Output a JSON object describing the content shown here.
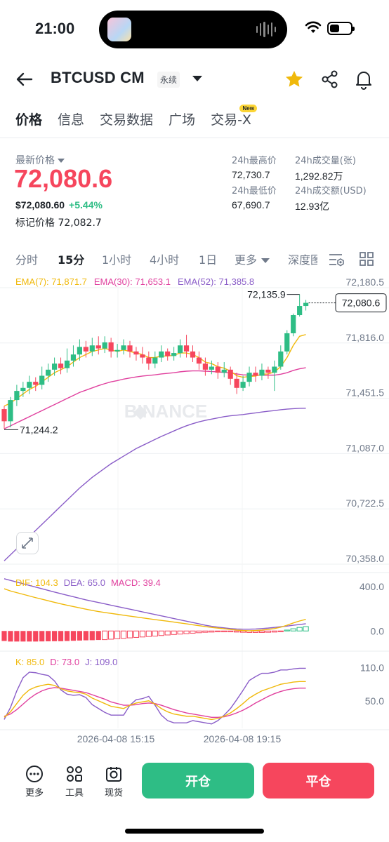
{
  "status_bar": {
    "time": "21:00",
    "battery_level": 0.45
  },
  "header": {
    "title": "BTCUSD CM",
    "tag": "永续",
    "icons": [
      "back-arrow-icon",
      "star-icon",
      "share-icon",
      "bell-icon"
    ],
    "star_color": "#f0b90b"
  },
  "tabs": [
    {
      "label": "价格",
      "active": true
    },
    {
      "label": "信息"
    },
    {
      "label": "交易数据"
    },
    {
      "label": "广场"
    },
    {
      "label": "交易-X",
      "badge": "New"
    }
  ],
  "price": {
    "label": "最新价格",
    "last": "72,080.6",
    "usd": "$72,080.60",
    "change": "+5.44%",
    "mark_label": "标记价格",
    "mark_value": "72,082.7",
    "up_color": "#2ebd85",
    "down_color": "#f6465d"
  },
  "stats": {
    "high_label": "24h最高价",
    "high": "72,730.7",
    "low_label": "24h最低价",
    "low": "67,690.7",
    "vol_label": "24h成交量(张)",
    "vol": "1,292.82万",
    "amount_label": "24h成交额(USD)",
    "amount": "12.93亿"
  },
  "intervals": {
    "items": [
      "分时",
      "15分",
      "1小时",
      "4小时",
      "1日",
      "更多",
      "深度图"
    ],
    "active": "15分"
  },
  "chart_data": {
    "type": "candlestick",
    "ema_legend": {
      "ema7": "EMA(7): 71,871.7",
      "ema30": "EMA(30): 71,653.1",
      "ema52": "EMA(52): 71,385.8"
    },
    "y_ticks": [
      "72,180.5",
      "71,816.0",
      "71,451.5",
      "71,087.0",
      "70,722.5",
      "70,358.0"
    ],
    "ylim": [
      70358.0,
      72180.5
    ],
    "x_ticks": [
      "2026-04-08 15:15",
      "2026-04-08 19:15"
    ],
    "high_label": "72,135.9",
    "low_label": "71,244.2",
    "current_price_label": "72,080.6",
    "candles": [
      [
        71380,
        71300,
        71250,
        71400
      ],
      [
        71300,
        71440,
        71260,
        71460
      ],
      [
        71440,
        71500,
        71400,
        71540
      ],
      [
        71500,
        71520,
        71460,
        71560
      ],
      [
        71520,
        71560,
        71480,
        71600
      ],
      [
        71560,
        71540,
        71500,
        71590
      ],
      [
        71540,
        71600,
        71510,
        71660
      ],
      [
        71600,
        71640,
        71560,
        71680
      ],
      [
        71640,
        71680,
        71600,
        71720
      ],
      [
        71680,
        71650,
        71610,
        71720
      ],
      [
        71650,
        71700,
        71620,
        71780
      ],
      [
        71700,
        71740,
        71660,
        71800
      ],
      [
        71740,
        71790,
        71700,
        71840
      ],
      [
        71790,
        71760,
        71720,
        71830
      ],
      [
        71760,
        71800,
        71730,
        71850
      ],
      [
        71800,
        71780,
        71740,
        71860
      ],
      [
        71780,
        71820,
        71750,
        71860
      ],
      [
        71820,
        71760,
        71720,
        71850
      ],
      [
        71760,
        71770,
        71720,
        71810
      ],
      [
        71770,
        71800,
        71740,
        71840
      ],
      [
        71800,
        71760,
        71720,
        71830
      ],
      [
        71760,
        71740,
        71700,
        71790
      ],
      [
        71740,
        71720,
        71680,
        71790
      ],
      [
        71720,
        71680,
        71640,
        71760
      ],
      [
        71680,
        71720,
        71650,
        71760
      ],
      [
        71720,
        71760,
        71690,
        71800
      ],
      [
        71760,
        71730,
        71700,
        71780
      ],
      [
        71730,
        71750,
        71700,
        71790
      ],
      [
        71750,
        71800,
        71720,
        71840
      ],
      [
        71800,
        71760,
        71720,
        71870
      ],
      [
        71760,
        71720,
        71690,
        71800
      ],
      [
        71720,
        71680,
        71640,
        71760
      ],
      [
        71680,
        71640,
        71600,
        71720
      ],
      [
        71640,
        71660,
        71610,
        71700
      ],
      [
        71660,
        71620,
        71580,
        71690
      ],
      [
        71620,
        71640,
        71590,
        71690
      ],
      [
        71640,
        71580,
        71540,
        71660
      ],
      [
        71580,
        71520,
        71480,
        71620
      ],
      [
        71520,
        71560,
        71500,
        71600
      ],
      [
        71560,
        71620,
        71530,
        71660
      ],
      [
        71620,
        71600,
        71560,
        71660
      ],
      [
        71600,
        71640,
        71570,
        71680
      ],
      [
        71640,
        71620,
        71580,
        71660
      ],
      [
        71620,
        71660,
        71500,
        71700
      ],
      [
        71660,
        71760,
        71640,
        71800
      ],
      [
        71760,
        71880,
        71740,
        71900
      ],
      [
        71880,
        72000,
        71860,
        72010
      ],
      [
        72000,
        72060,
        71990,
        72135.9
      ],
      [
        72060,
        72080.6,
        72030,
        72100
      ]
    ],
    "ema7": [
      71400,
      71420,
      71450,
      71480,
      71510,
      71530,
      71560,
      71590,
      71620,
      71640,
      71660,
      71690,
      71720,
      71740,
      71760,
      71770,
      71780,
      71770,
      71760,
      71770,
      71760,
      71750,
      71740,
      71720,
      71720,
      71730,
      71730,
      71735,
      71750,
      71750,
      71740,
      71720,
      71690,
      71680,
      71660,
      71650,
      71630,
      71600,
      71590,
      71595,
      71598,
      71610,
      71612,
      71625,
      71660,
      71720,
      71800,
      71860,
      71871.7
    ],
    "ema30": [
      71250,
      71270,
      71290,
      71310,
      71330,
      71350,
      71370,
      71390,
      71410,
      71430,
      71450,
      71470,
      71490,
      71505,
      71520,
      71535,
      71548,
      71560,
      71568,
      71578,
      71585,
      71592,
      71598,
      71602,
      71606,
      71612,
      71616,
      71620,
      71626,
      71630,
      71632,
      71632,
      71630,
      71628,
      71625,
      71622,
      71618,
      71612,
      71606,
      71604,
      71603,
      71603,
      71604,
      71604,
      71610,
      71620,
      71635,
      71646,
      71653.1
    ],
    "ema52": [
      70380,
      70420,
      70460,
      70500,
      70540,
      70580,
      70620,
      70660,
      70700,
      70740,
      70780,
      70820,
      70860,
      70895,
      70930,
      70960,
      70990,
      71020,
      71045,
      71070,
      71095,
      71120,
      71140,
      71160,
      71180,
      71200,
      71218,
      71236,
      71254,
      71270,
      71284,
      71296,
      71306,
      71314,
      71322,
      71330,
      71336,
      71340,
      71344,
      71350,
      71355,
      71361,
      71366,
      71370,
      71376,
      71380,
      71383,
      71385,
      71385.8
    ]
  },
  "macd": {
    "legend": {
      "dif": "DIF: 104.3",
      "dea": "DEA: 65.0",
      "macd": "MACD: 39.4"
    },
    "y_ticks": [
      "400.0",
      "0.0"
    ],
    "ylim": [
      -150,
      450
    ],
    "dif": [
      380,
      360,
      345,
      330,
      315,
      300,
      286,
      272,
      258,
      244,
      232,
      220,
      208,
      196,
      185,
      175,
      166,
      158,
      150,
      142,
      134,
      126,
      118,
      110,
      102,
      95,
      88,
      80,
      72,
      64,
      56,
      48,
      40,
      32,
      26,
      20,
      14,
      8,
      4,
      2,
      4,
      8,
      14,
      22,
      34,
      52,
      72,
      90,
      104.3
    ],
    "dea": [
      470,
      455,
      440,
      425,
      410,
      395,
      380,
      365,
      350,
      336,
      322,
      308,
      294,
      280,
      268,
      256,
      244,
      232,
      220,
      208,
      196,
      184,
      172,
      160,
      148,
      136,
      124,
      112,
      100,
      88,
      76,
      64,
      52,
      42,
      34,
      28,
      22,
      18,
      16,
      16,
      18,
      22,
      26,
      32,
      38,
      44,
      52,
      58,
      65.0
    ],
    "hist": [
      -90,
      -95,
      -95,
      -95,
      -95,
      -95,
      -94,
      -93,
      -92,
      -92,
      -90,
      -88,
      -86,
      -84,
      -83,
      -81,
      -78,
      -74,
      -70,
      -66,
      -62,
      -58,
      -54,
      -50,
      -46,
      -41,
      -36,
      -32,
      -28,
      -24,
      -20,
      -16,
      -12,
      -10,
      -8,
      -8,
      -8,
      -10,
      -12,
      -14,
      -14,
      -14,
      -12,
      -10,
      -4,
      8,
      20,
      32,
      39.4
    ]
  },
  "kdj": {
    "legend": {
      "k": "K: 85.0",
      "d": "D: 73.0",
      "j": "J: 109.0"
    },
    "y_ticks": [
      "110.0",
      "50.0"
    ],
    "ylim": [
      0,
      130
    ],
    "k": [
      20,
      30,
      45,
      60,
      70,
      75,
      78,
      80,
      78,
      72,
      68,
      66,
      65,
      62,
      55,
      50,
      45,
      40,
      38,
      36,
      42,
      46,
      48,
      50,
      44,
      36,
      30,
      26,
      24,
      22,
      22,
      20,
      18,
      16,
      18,
      22,
      28,
      36,
      45,
      55,
      62,
      68,
      72,
      76,
      80,
      82,
      84,
      85,
      85.0
    ],
    "d": [
      22,
      26,
      34,
      44,
      54,
      62,
      68,
      72,
      74,
      73,
      71,
      69,
      67,
      65,
      61,
      57,
      53,
      48,
      45,
      42,
      42,
      43,
      45,
      46,
      45,
      42,
      38,
      34,
      31,
      28,
      26,
      24,
      22,
      20,
      20,
      21,
      24,
      28,
      33,
      39,
      46,
      52,
      58,
      63,
      67,
      70,
      72,
      73,
      73.0
    ],
    "j": [
      16,
      38,
      68,
      92,
      102,
      101,
      98,
      96,
      86,
      70,
      62,
      60,
      61,
      56,
      43,
      36,
      29,
      24,
      24,
      24,
      42,
      52,
      54,
      58,
      42,
      24,
      14,
      10,
      10,
      10,
      14,
      12,
      10,
      8,
      14,
      24,
      36,
      52,
      69,
      87,
      94,
      100,
      100,
      102,
      106,
      106,
      108,
      109,
      109.0
    ]
  },
  "watermark": "BINANCE",
  "bottom_bar": {
    "more": "更多",
    "tools": "工具",
    "spot": "现货",
    "open": "开仓",
    "close": "平仓"
  }
}
